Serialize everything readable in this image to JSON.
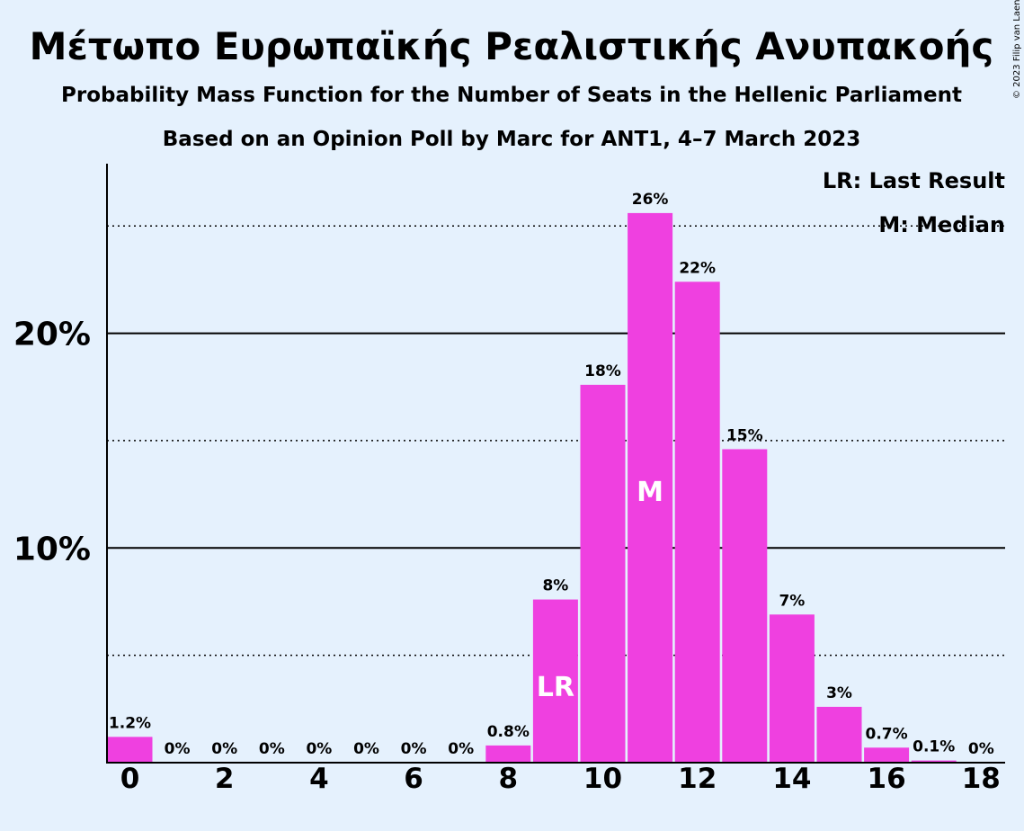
{
  "chart_data": {
    "type": "bar",
    "title": "Μέτωπο Ευρωπαϊκής Ρεαλιστικής Ανυπακοής",
    "subtitle": "Probability Mass Function for the Number of Seats in the Hellenic Parliament",
    "subtitle2": "Based on an Opinion Poll by Marc for ANT1, 4–7 March 2023",
    "copyright": "© 2023 Filip van Laenen",
    "legend": [
      "LR: Last Result",
      "M: Median"
    ],
    "legend_position": "top-right",
    "x": [
      0,
      1,
      2,
      3,
      4,
      5,
      6,
      7,
      8,
      9,
      10,
      11,
      12,
      13,
      14,
      15,
      16,
      17,
      18
    ],
    "x_tick_labels": [
      "0",
      "2",
      "4",
      "6",
      "8",
      "10",
      "12",
      "14",
      "16",
      "18"
    ],
    "values": [
      1.2,
      0,
      0,
      0,
      0,
      0,
      0,
      0,
      0.8,
      7.6,
      17.6,
      25.6,
      22.4,
      14.6,
      6.9,
      2.6,
      0.7,
      0.1,
      0
    ],
    "value_labels": [
      "1.2%",
      "0%",
      "0%",
      "0%",
      "0%",
      "0%",
      "0%",
      "0%",
      "0.8%",
      "8%",
      "18%",
      "26%",
      "22%",
      "15%",
      "7%",
      "3%",
      "0.7%",
      "0.1%",
      "0%"
    ],
    "y_tick_labels": [
      "10%",
      "20%"
    ],
    "y_ticks": [
      10,
      20
    ],
    "y_minor_gridlines": [
      5,
      15,
      25
    ],
    "ylim": [
      0,
      27.9
    ],
    "last_result_seat": 9,
    "last_result_label": "LR",
    "median_seat": 11,
    "median_label": "M",
    "bar_color": "#ef40e0",
    "background_color": "#e5f1fd",
    "grid": true
  }
}
